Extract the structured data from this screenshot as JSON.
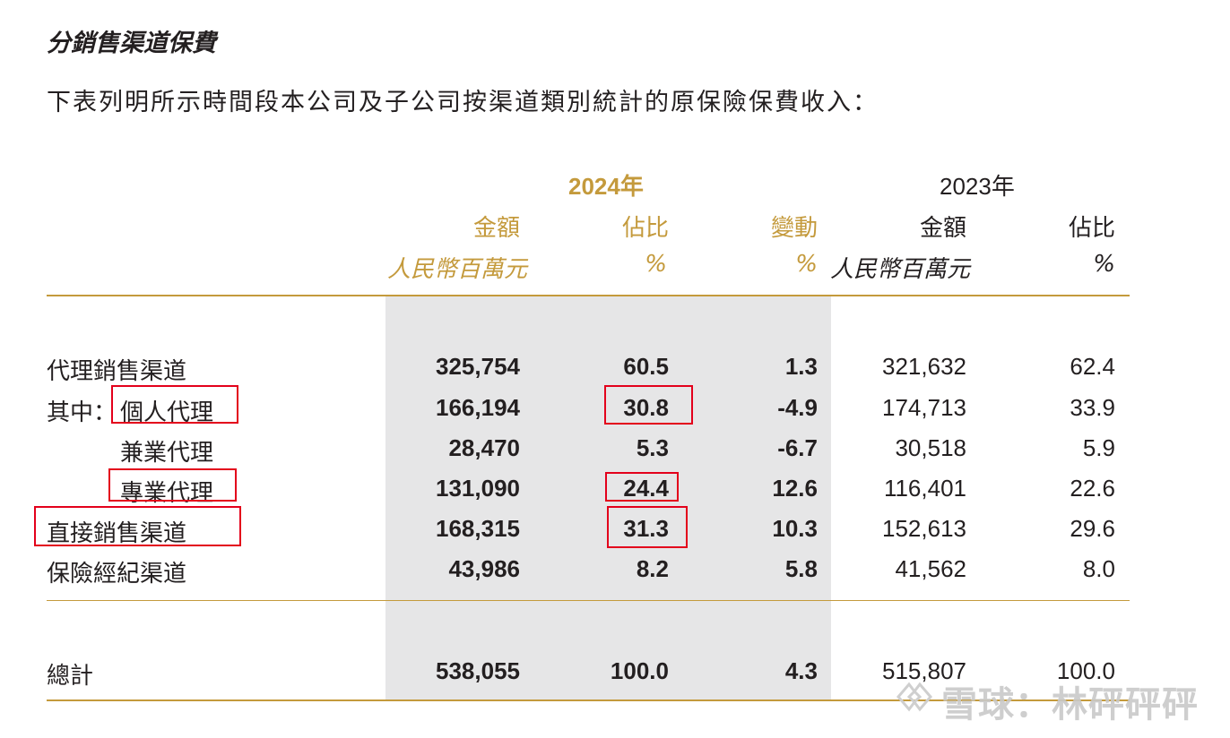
{
  "section_title": "分銷售渠道保費",
  "intro_text": "下表列明所示時間段本公司及子公司按渠道類別統計的原保險保費收入：",
  "header": {
    "year_2024": "2024年",
    "year_2023": "2023年",
    "amount_label": "金額",
    "share_label": "佔比",
    "change_label": "變動",
    "unit_rmb": "人民幣百萬元",
    "unit_pct": "%"
  },
  "rows": [
    {
      "label": "代理銷售渠道",
      "amount_2024": "325,754",
      "share_2024": "60.5",
      "change": "1.3",
      "amount_2023": "321,632",
      "share_2023": "62.4"
    },
    {
      "prefix": "其中：",
      "label": "個人代理",
      "amount_2024": "166,194",
      "share_2024": "30.8",
      "change": "-4.9",
      "amount_2023": "174,713",
      "share_2023": "33.9"
    },
    {
      "label": "兼業代理",
      "amount_2024": "28,470",
      "share_2024": "5.3",
      "change": "-6.7",
      "amount_2023": "30,518",
      "share_2023": "5.9"
    },
    {
      "label": "專業代理",
      "amount_2024": "131,090",
      "share_2024": "24.4",
      "change": "12.6",
      "amount_2023": "116,401",
      "share_2023": "22.6"
    },
    {
      "label": "直接銷售渠道",
      "amount_2024": "168,315",
      "share_2024": "31.3",
      "change": "10.3",
      "amount_2023": "152,613",
      "share_2023": "29.6"
    },
    {
      "label": "保險經紀渠道",
      "amount_2024": "43,986",
      "share_2024": "8.2",
      "change": "5.8",
      "amount_2023": "41,562",
      "share_2023": "8.0"
    }
  ],
  "total": {
    "label": "總計",
    "amount_2024": "538,055",
    "share_2024": "100.0",
    "change": "4.3",
    "amount_2023": "515,807",
    "share_2023": "100.0"
  },
  "watermark": "雪球：林砰砰砰",
  "colors": {
    "gold": "#c49a3c",
    "shade": "#e6e6e7",
    "highlight_box": "#e3001b"
  }
}
